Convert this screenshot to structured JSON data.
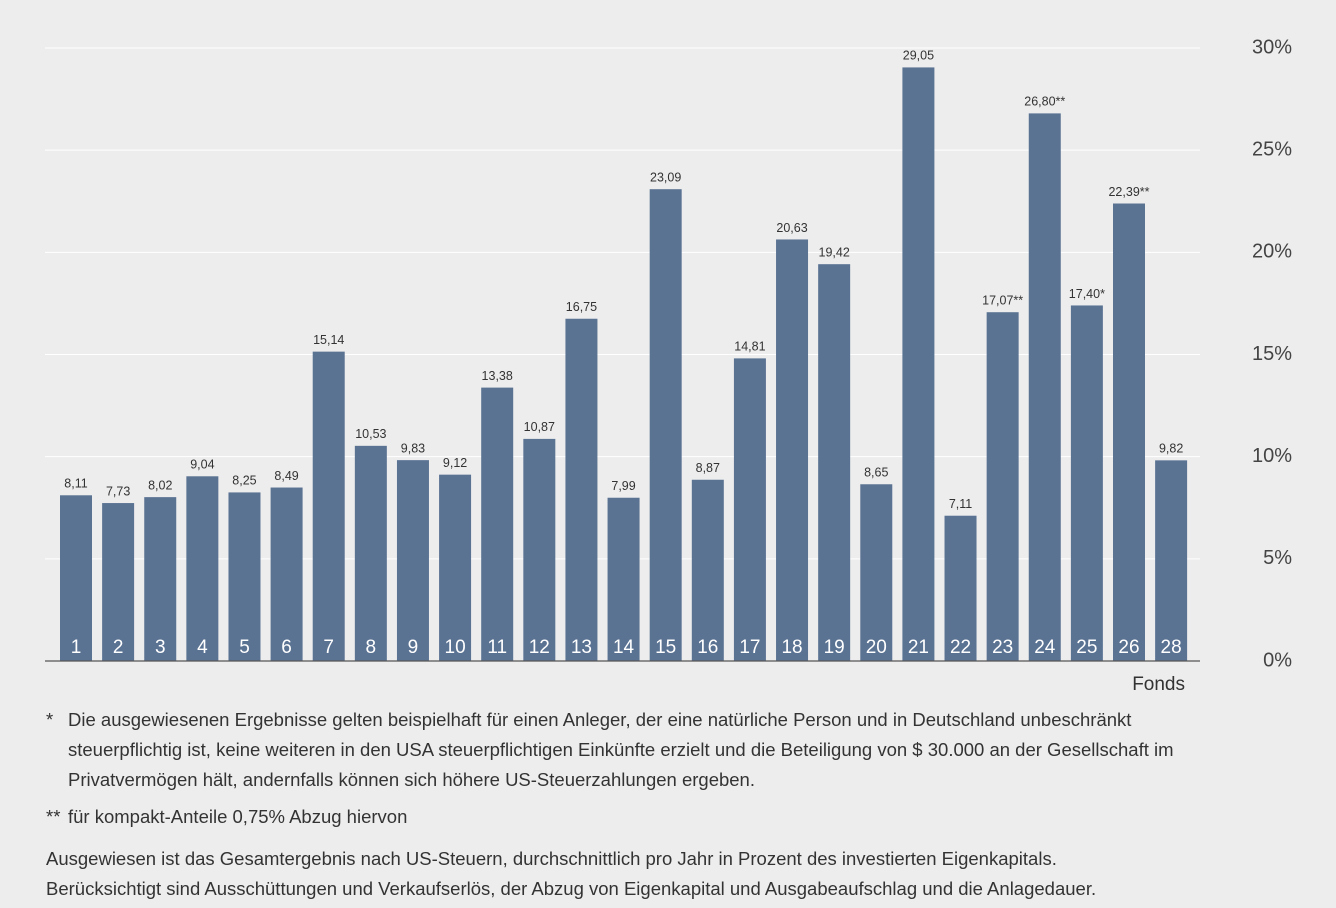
{
  "chart_data": {
    "type": "bar",
    "categories": [
      "1",
      "2",
      "3",
      "4",
      "5",
      "6",
      "7",
      "8",
      "9",
      "10",
      "11",
      "12",
      "13",
      "14",
      "15",
      "16",
      "17",
      "18",
      "19",
      "20",
      "21",
      "22",
      "23",
      "24",
      "25",
      "26",
      "28"
    ],
    "values": [
      8.11,
      7.73,
      8.02,
      9.04,
      8.25,
      8.49,
      15.14,
      10.53,
      9.83,
      9.12,
      13.38,
      10.87,
      16.75,
      7.99,
      23.09,
      8.87,
      14.81,
      20.63,
      19.42,
      8.65,
      29.05,
      7.11,
      17.07,
      26.8,
      17.4,
      22.39,
      9.82
    ],
    "value_labels": [
      "8,11",
      "7,73",
      "8,02",
      "9,04",
      "8,25",
      "8,49",
      "15,14",
      "10,53",
      "9,83",
      "9,12",
      "13,38",
      "10,87",
      "16,75",
      "7,99",
      "23,09",
      "8,87",
      "14,81",
      "20,63",
      "19,42",
      "8,65",
      "29,05",
      "7,11",
      "17,07**",
      "26,80**",
      "17,40*",
      "22,39**",
      "9,82"
    ],
    "color": "#5b7393",
    "xlabel": "Fonds",
    "ylim": [
      0,
      30
    ],
    "yticks": [
      {
        "value": 0,
        "label": "0%"
      },
      {
        "value": 5,
        "label": "5%"
      },
      {
        "value": 10,
        "label": "10%"
      },
      {
        "value": 15,
        "label": "15%"
      },
      {
        "value": 20,
        "label": "20%"
      },
      {
        "value": 25,
        "label": "25%"
      },
      {
        "value": 30,
        "label": "30%"
      }
    ],
    "grid": true,
    "footnotes": [
      {
        "marker": "*",
        "text": "Die ausgewiesenen Ergebnisse gelten beispielhaft für einen Anleger, der eine natürliche Person und in Deutschland unbeschränkt steuerpflichtig ist, keine weiteren in den USA steuerpflichtigen Einkünfte erzielt und die Beteiligung von $ 30.000 an der Gesellschaft im Privatvermögen hält, andernfalls können sich höhere US-Steuerzahlungen ergeben."
      },
      {
        "marker": "**",
        "text": "für kompakt-Anteile 0,75% Abzug hiervon"
      }
    ],
    "notes": [
      "Ausgewiesen ist das Gesamtergebnis nach US-Steuern, durchschnittlich pro Jahr in Prozent des investierten Eigenkapitals.",
      "Berücksichtigt sind Ausschüttungen und Verkaufserlös, der Abzug von Eigenkapital und Ausgabeaufschlag und die Anlagedauer."
    ]
  }
}
